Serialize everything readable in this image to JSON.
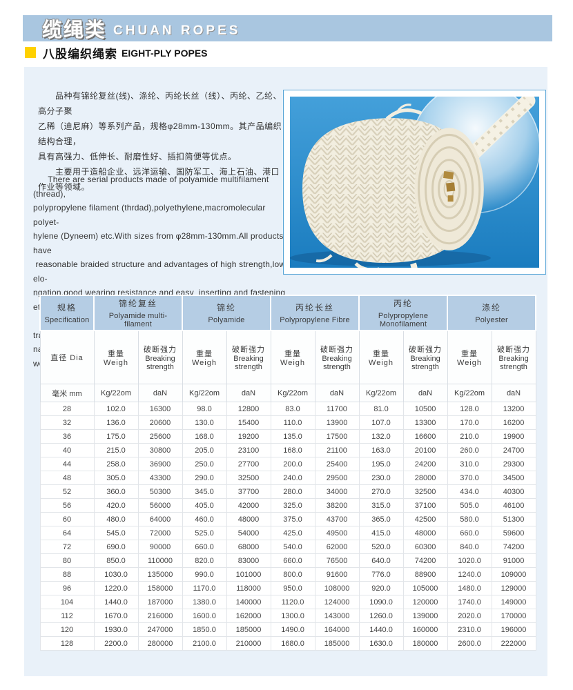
{
  "colors": {
    "banner_blue": "#a9c6e0",
    "panel_blue": "#e9f1f9",
    "table_header_blue": "#b5cde4",
    "photo_blue": "#2e92d2",
    "accent_yellow": "#ffd100"
  },
  "banner": {
    "title_zh": "缆绳类",
    "title_en": "CHUAN ROPES"
  },
  "subtitle": {
    "zh": "八股编织绳索",
    "en": "EIGHT-PLY POPES"
  },
  "intro_zh": "　　品种有锦纶复丝(线)、涤纶、丙纶长丝（线）、丙纶、乙纶、高分子聚\n乙稀（迪尼麻）等系列产品，规格φ28mm-130mm。其产品编织结构合理，\n具有高强力、低伸长、耐磨性好、插扣简便等优点。\n　　主要用于造船企业、远洋运输、国防军工、海上石油、港口作业等领域。",
  "intro_en": "      There are serial products made of polyamide multifilament (thread),\npolypropylene filament (thrdad),polyethylene,macromolecular polyet-\nhylene (Dyneem) etc.With sizes from φ28mm-130mm.All products have\n reasonable braided structure and advantages of high strength,low elo-\nngation,good wearing resistance and easy  inserting and fastening etc.\n      All products are mainly used in shipbuilding,ocean transportation,\nnational defense and military industry,ocean petroleum,harbor works etc.",
  "photo": {
    "description": "white eight-ply braided rope coil on blue background"
  },
  "table": {
    "groups": [
      {
        "zh": "规格",
        "en": "Specification",
        "span": 1
      },
      {
        "zh": "锦纶复丝",
        "en": "Polyamide multi-filament",
        "span": 2
      },
      {
        "zh": "锦纶",
        "en": "Polyamide",
        "span": 2
      },
      {
        "zh": "丙纶长丝",
        "en": "Polypropylene Fibre",
        "span": 2
      },
      {
        "zh": "丙纶",
        "en": "Polypropylene Monofilament",
        "span": 2
      },
      {
        "zh": "涤纶",
        "en": "Polyester",
        "span": 2
      }
    ],
    "sub": {
      "dia": "直径 Dia",
      "weight": "重量Weigh",
      "breaking_zh": "破断强力",
      "breaking_en1": "Breaking",
      "breaking_en2": "strength"
    },
    "units": {
      "mm": "毫米 mm",
      "weight": "Kg/22om",
      "strength": "daN"
    },
    "rows": [
      [
        "28",
        "102.0",
        "16300",
        "98.0",
        "12800",
        "83.0",
        "11700",
        "81.0",
        "10500",
        "128.0",
        "13200"
      ],
      [
        "32",
        "136.0",
        "20600",
        "130.0",
        "15400",
        "110.0",
        "13900",
        "107.0",
        "13300",
        "170.0",
        "16200"
      ],
      [
        "36",
        "175.0",
        "25600",
        "168.0",
        "19200",
        "135.0",
        "17500",
        "132.0",
        "16600",
        "210.0",
        "19900"
      ],
      [
        "40",
        "215.0",
        "30800",
        "205.0",
        "23100",
        "168.0",
        "21100",
        "163.0",
        "20100",
        "260.0",
        "24700"
      ],
      [
        "44",
        "258.0",
        "36900",
        "250.0",
        "27700",
        "200.0",
        "25400",
        "195.0",
        "24200",
        "310.0",
        "29300"
      ],
      [
        "48",
        "305.0",
        "43300",
        "290.0",
        "32500",
        "240.0",
        "29500",
        "230.0",
        "28000",
        "370.0",
        "34500"
      ],
      [
        "52",
        "360.0",
        "50300",
        "345.0",
        "37700",
        "280.0",
        "34000",
        "270.0",
        "32500",
        "434.0",
        "40300"
      ],
      [
        "56",
        "420.0",
        "56000",
        "405.0",
        "42000",
        "325.0",
        "38200",
        "315.0",
        "37100",
        "505.0",
        "46100"
      ],
      [
        "60",
        "480.0",
        "64000",
        "460.0",
        "48000",
        "375.0",
        "43700",
        "365.0",
        "42500",
        "580.0",
        "51300"
      ],
      [
        "64",
        "545.0",
        "72000",
        "525.0",
        "54000",
        "425.0",
        "49500",
        "415.0",
        "48000",
        "660.0",
        "59600"
      ],
      [
        "72",
        "690.0",
        "90000",
        "660.0",
        "68000",
        "540.0",
        "62000",
        "520.0",
        "60300",
        "840.0",
        "74200"
      ],
      [
        "80",
        "850.0",
        "110000",
        "820.0",
        "83000",
        "660.0",
        "76500",
        "640.0",
        "74200",
        "1020.0",
        "91000"
      ],
      [
        "88",
        "1030.0",
        "135000",
        "990.0",
        "101000",
        "800.0",
        "91600",
        "776.0",
        "88900",
        "1240.0",
        "109000"
      ],
      [
        "96",
        "1220.0",
        "158000",
        "1170.0",
        "118000",
        "950.0",
        "108000",
        "920.0",
        "105000",
        "1480.0",
        "129000"
      ],
      [
        "104",
        "1440.0",
        "187000",
        "1380.0",
        "140000",
        "1120.0",
        "124000",
        "1090.0",
        "120000",
        "1740.0",
        "149000"
      ],
      [
        "112",
        "1670.0",
        "216000",
        "1600.0",
        "162000",
        "1300.0",
        "143000",
        "1260.0",
        "139000",
        "2020.0",
        "170000"
      ],
      [
        "120",
        "1930.0",
        "247000",
        "1850.0",
        "185000",
        "1490.0",
        "164000",
        "1440.0",
        "160000",
        "2310.0",
        "196000"
      ],
      [
        "128",
        "2200.0",
        "280000",
        "2100.0",
        "210000",
        "1680.0",
        "185000",
        "1630.0",
        "180000",
        "2600.0",
        "222000"
      ]
    ]
  }
}
